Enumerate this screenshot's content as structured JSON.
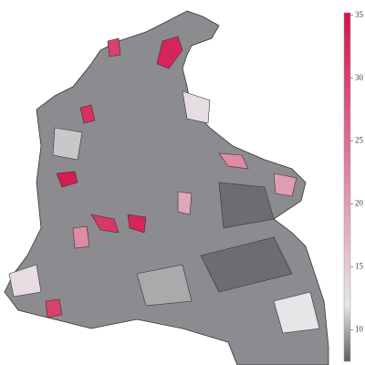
{
  "chart_data": {
    "type": "choropleth",
    "values": [
      33,
      30,
      32,
      34,
      31,
      33,
      20,
      22,
      13,
      8,
      12,
      10,
      30,
      13,
      19,
      8,
      11,
      22
    ],
    "colorbar": {
      "lim": [
        7.5,
        35.2
      ],
      "ticks": [
        10,
        15,
        20,
        25,
        30,
        35
      ],
      "colors": [
        "#5e5e62",
        "#e6e6e8",
        "#d4124a"
      ],
      "stops": [
        7.5,
        12,
        35.2
      ]
    }
  }
}
